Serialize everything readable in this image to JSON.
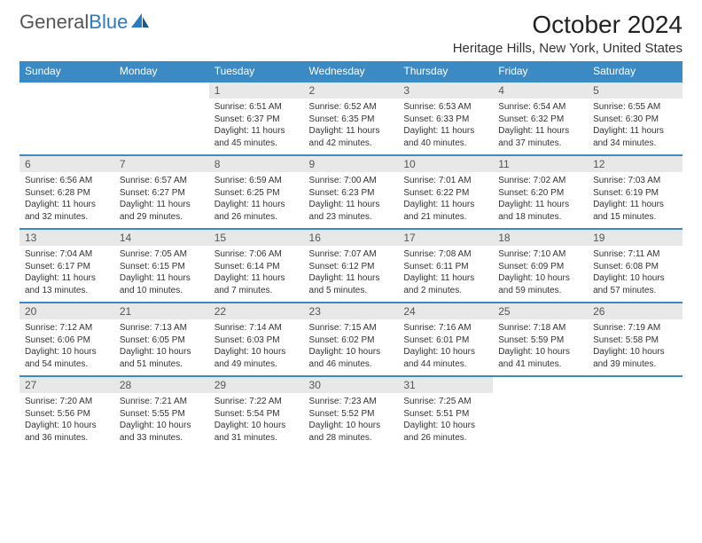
{
  "brand": {
    "name_part1": "General",
    "name_part2": "Blue"
  },
  "title": "October 2024",
  "location": "Heritage Hills, New York, United States",
  "calendar": {
    "header_bg": "#3b8ac4",
    "header_fg": "#ffffff",
    "daynum_bg": "#e8e8e8",
    "border_color": "#3b8ac4",
    "label_fontsize": 12,
    "info_fontsize": 10,
    "day_labels": [
      "Sunday",
      "Monday",
      "Tuesday",
      "Wednesday",
      "Thursday",
      "Friday",
      "Saturday"
    ],
    "weeks": [
      [
        {
          "blank": true
        },
        {
          "blank": true
        },
        {
          "d": "1",
          "sr": "6:51 AM",
          "ss": "6:37 PM",
          "dl": "11 hours and 45 minutes."
        },
        {
          "d": "2",
          "sr": "6:52 AM",
          "ss": "6:35 PM",
          "dl": "11 hours and 42 minutes."
        },
        {
          "d": "3",
          "sr": "6:53 AM",
          "ss": "6:33 PM",
          "dl": "11 hours and 40 minutes."
        },
        {
          "d": "4",
          "sr": "6:54 AM",
          "ss": "6:32 PM",
          "dl": "11 hours and 37 minutes."
        },
        {
          "d": "5",
          "sr": "6:55 AM",
          "ss": "6:30 PM",
          "dl": "11 hours and 34 minutes."
        }
      ],
      [
        {
          "d": "6",
          "sr": "6:56 AM",
          "ss": "6:28 PM",
          "dl": "11 hours and 32 minutes."
        },
        {
          "d": "7",
          "sr": "6:57 AM",
          "ss": "6:27 PM",
          "dl": "11 hours and 29 minutes."
        },
        {
          "d": "8",
          "sr": "6:59 AM",
          "ss": "6:25 PM",
          "dl": "11 hours and 26 minutes."
        },
        {
          "d": "9",
          "sr": "7:00 AM",
          "ss": "6:23 PM",
          "dl": "11 hours and 23 minutes."
        },
        {
          "d": "10",
          "sr": "7:01 AM",
          "ss": "6:22 PM",
          "dl": "11 hours and 21 minutes."
        },
        {
          "d": "11",
          "sr": "7:02 AM",
          "ss": "6:20 PM",
          "dl": "11 hours and 18 minutes."
        },
        {
          "d": "12",
          "sr": "7:03 AM",
          "ss": "6:19 PM",
          "dl": "11 hours and 15 minutes."
        }
      ],
      [
        {
          "d": "13",
          "sr": "7:04 AM",
          "ss": "6:17 PM",
          "dl": "11 hours and 13 minutes."
        },
        {
          "d": "14",
          "sr": "7:05 AM",
          "ss": "6:15 PM",
          "dl": "11 hours and 10 minutes."
        },
        {
          "d": "15",
          "sr": "7:06 AM",
          "ss": "6:14 PM",
          "dl": "11 hours and 7 minutes."
        },
        {
          "d": "16",
          "sr": "7:07 AM",
          "ss": "6:12 PM",
          "dl": "11 hours and 5 minutes."
        },
        {
          "d": "17",
          "sr": "7:08 AM",
          "ss": "6:11 PM",
          "dl": "11 hours and 2 minutes."
        },
        {
          "d": "18",
          "sr": "7:10 AM",
          "ss": "6:09 PM",
          "dl": "10 hours and 59 minutes."
        },
        {
          "d": "19",
          "sr": "7:11 AM",
          "ss": "6:08 PM",
          "dl": "10 hours and 57 minutes."
        }
      ],
      [
        {
          "d": "20",
          "sr": "7:12 AM",
          "ss": "6:06 PM",
          "dl": "10 hours and 54 minutes."
        },
        {
          "d": "21",
          "sr": "7:13 AM",
          "ss": "6:05 PM",
          "dl": "10 hours and 51 minutes."
        },
        {
          "d": "22",
          "sr": "7:14 AM",
          "ss": "6:03 PM",
          "dl": "10 hours and 49 minutes."
        },
        {
          "d": "23",
          "sr": "7:15 AM",
          "ss": "6:02 PM",
          "dl": "10 hours and 46 minutes."
        },
        {
          "d": "24",
          "sr": "7:16 AM",
          "ss": "6:01 PM",
          "dl": "10 hours and 44 minutes."
        },
        {
          "d": "25",
          "sr": "7:18 AM",
          "ss": "5:59 PM",
          "dl": "10 hours and 41 minutes."
        },
        {
          "d": "26",
          "sr": "7:19 AM",
          "ss": "5:58 PM",
          "dl": "10 hours and 39 minutes."
        }
      ],
      [
        {
          "d": "27",
          "sr": "7:20 AM",
          "ss": "5:56 PM",
          "dl": "10 hours and 36 minutes."
        },
        {
          "d": "28",
          "sr": "7:21 AM",
          "ss": "5:55 PM",
          "dl": "10 hours and 33 minutes."
        },
        {
          "d": "29",
          "sr": "7:22 AM",
          "ss": "5:54 PM",
          "dl": "10 hours and 31 minutes."
        },
        {
          "d": "30",
          "sr": "7:23 AM",
          "ss": "5:52 PM",
          "dl": "10 hours and 28 minutes."
        },
        {
          "d": "31",
          "sr": "7:25 AM",
          "ss": "5:51 PM",
          "dl": "10 hours and 26 minutes."
        },
        {
          "blank": true
        },
        {
          "blank": true
        }
      ]
    ]
  },
  "labels": {
    "sunrise_prefix": "Sunrise: ",
    "sunset_prefix": "Sunset: ",
    "daylight_prefix": "Daylight: "
  }
}
